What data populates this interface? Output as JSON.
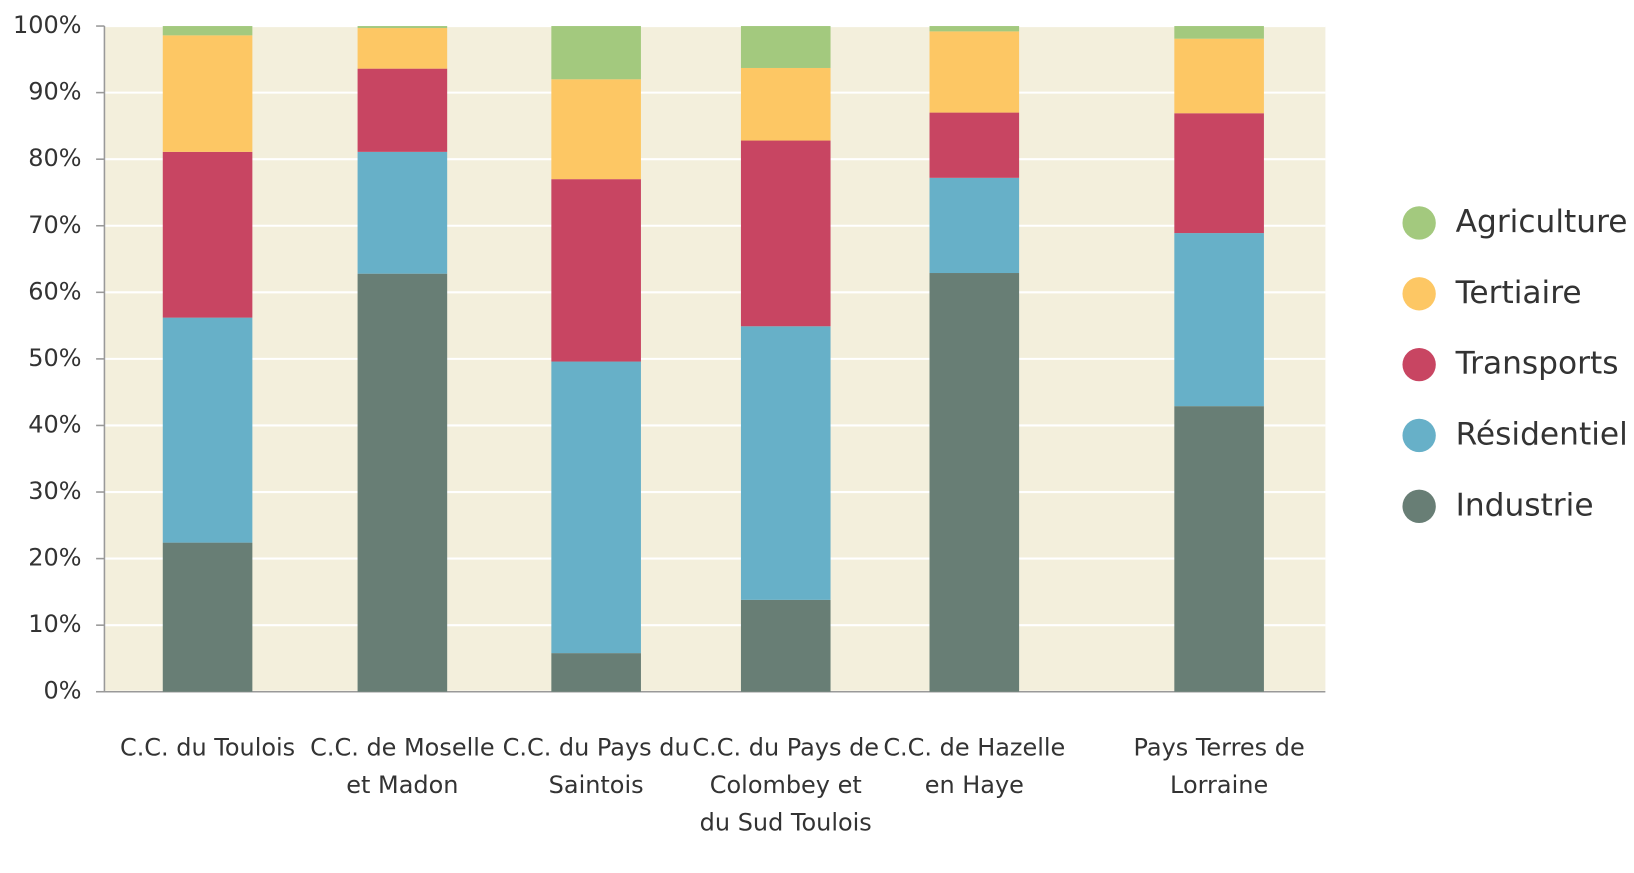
{
  "chart_data": {
    "type": "stacked_bar",
    "categories": [
      "C.C. du Toulois",
      "C.C. de Moselle et Madon",
      "C.C. du Pays du Saintois",
      "C.C. du Pays de Colombey et du Sud Toulois",
      "C.C. de Hazelle en Haye",
      "Pays Terres de Lorraine"
    ],
    "series": [
      {
        "name": "Industrie",
        "color": "#687e75",
        "values": [
          22.4,
          62.8,
          5.8,
          13.8,
          62.9,
          42.9
        ]
      },
      {
        "name": "Résidentiel",
        "color": "#67b0c8",
        "values": [
          33.8,
          18.3,
          43.8,
          41.1,
          14.3,
          26.0
        ]
      },
      {
        "name": "Transports",
        "color": "#c84562",
        "values": [
          24.9,
          12.5,
          27.4,
          27.9,
          9.8,
          18.0
        ]
      },
      {
        "name": "Tertiaire",
        "color": "#fdc764",
        "values": [
          17.5,
          6.1,
          15.0,
          10.9,
          12.2,
          11.2
        ]
      },
      {
        "name": "Agriculture",
        "color": "#a3c97e",
        "values": [
          1.4,
          0.3,
          8.0,
          6.3,
          0.8,
          1.9
        ]
      }
    ],
    "ylim": [
      0,
      100
    ],
    "yticks": [
      {
        "value": 0,
        "label": "0%"
      },
      {
        "value": 10,
        "label": "10%"
      },
      {
        "value": 20,
        "label": "20%"
      },
      {
        "value": 30,
        "label": "30%"
      },
      {
        "value": 40,
        "label": "40%"
      },
      {
        "value": 50,
        "label": "50%"
      },
      {
        "value": 60,
        "label": "60%"
      },
      {
        "value": 70,
        "label": "70%"
      },
      {
        "value": 80,
        "label": "80%"
      },
      {
        "value": 90,
        "label": "90%"
      },
      {
        "value": 100,
        "label": "100%"
      }
    ],
    "grid": true,
    "legend": "right"
  }
}
